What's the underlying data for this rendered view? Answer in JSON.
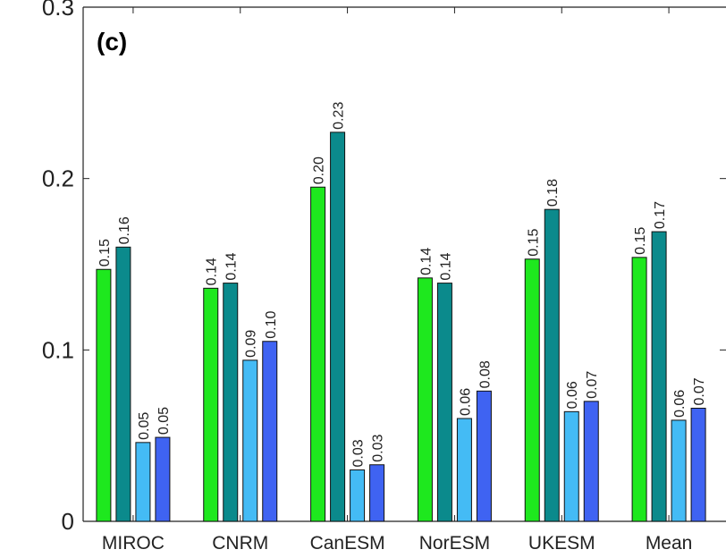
{
  "chart_data": {
    "type": "bar",
    "title": "",
    "panel_label": "(c)",
    "xlabel": "",
    "ylabel": "",
    "ylim": [
      0,
      0.3
    ],
    "yticks": [
      "0",
      "0.1",
      "0.2",
      "0.3"
    ],
    "categories": [
      "MIROC",
      "CNRM",
      "CanESM",
      "NorESM",
      "UKESM",
      "Mean"
    ],
    "series": [
      {
        "color": "#1ee81e",
        "values": [
          0.147,
          0.136,
          0.195,
          0.142,
          0.153,
          0.154
        ],
        "labels": [
          "0.15",
          "0.14",
          "0.20",
          "0.14",
          "0.15",
          "0.15"
        ]
      },
      {
        "color": "#0b8a8c",
        "values": [
          0.16,
          0.139,
          0.227,
          0.139,
          0.182,
          0.169
        ],
        "labels": [
          "0.16",
          "0.14",
          "0.23",
          "0.14",
          "0.18",
          "0.17"
        ]
      },
      {
        "color": "#44bbf5",
        "values": [
          0.046,
          0.094,
          0.03,
          0.06,
          0.064,
          0.059
        ],
        "labels": [
          "0.05",
          "0.09",
          "0.03",
          "0.06",
          "0.06",
          "0.06"
        ]
      },
      {
        "color": "#3f63f2",
        "values": [
          0.049,
          0.105,
          0.033,
          0.076,
          0.07,
          0.066
        ],
        "labels": [
          "0.05",
          "0.10",
          "0.03",
          "0.08",
          "0.07",
          "0.07"
        ]
      }
    ],
    "grid": false,
    "legend": "none"
  }
}
